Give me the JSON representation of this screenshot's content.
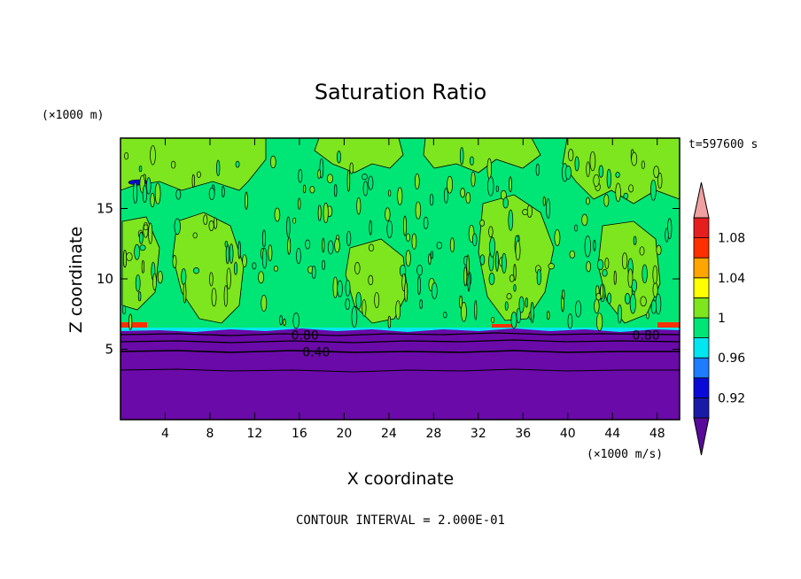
{
  "chart_data": {
    "type": "heatmap",
    "title": "Saturation Ratio",
    "xlabel": "X coordinate",
    "ylabel": "Z coordinate",
    "x_unit": "(×1000 m/s)",
    "y_unit": "(×1000 m)",
    "time_label": "t=597600 s",
    "footer": "CONTOUR INTERVAL = 2.000E-01",
    "xlim": [
      0,
      50
    ],
    "ylim": [
      0,
      20
    ],
    "x_ticks": [
      4,
      8,
      12,
      16,
      20,
      24,
      28,
      32,
      36,
      40,
      44,
      48
    ],
    "y_ticks": [
      5,
      10,
      15
    ],
    "grid": false,
    "colorbar": {
      "placement": "right",
      "levels": [
        0.9,
        0.92,
        0.94,
        0.96,
        0.98,
        1.0,
        1.02,
        1.04,
        1.06,
        1.08,
        1.1
      ],
      "colors": [
        "#5a0a9a",
        "#1a1aa8",
        "#0a0ad8",
        "#1e7dff",
        "#00e6f0",
        "#00e676",
        "#7de61e",
        "#ffff00",
        "#ffa500",
        "#ff3000",
        "#e61e1e",
        "#f0a0a0"
      ],
      "labels": [
        {
          "value": 0.92,
          "text": "0.92"
        },
        {
          "value": 0.96,
          "text": "0.96"
        },
        {
          "value": 1.0,
          "text": "1"
        },
        {
          "value": 1.04,
          "text": "1.04"
        },
        {
          "value": 1.08,
          "text": "1.08"
        }
      ]
    },
    "contour_labels": [
      {
        "x": 16.5,
        "z": 6.0,
        "text": "0.80"
      },
      {
        "x": 17.5,
        "z": 4.8,
        "text": "0.40"
      },
      {
        "x": 47.0,
        "z": 6.0,
        "text": "0.80"
      }
    ],
    "regions": {
      "upper_band_color": "#00e676",
      "upper_patch_color": "#7de61e",
      "lower_layer_color": "#6a0aa8",
      "inversion_top_z": 6.3
    }
  }
}
